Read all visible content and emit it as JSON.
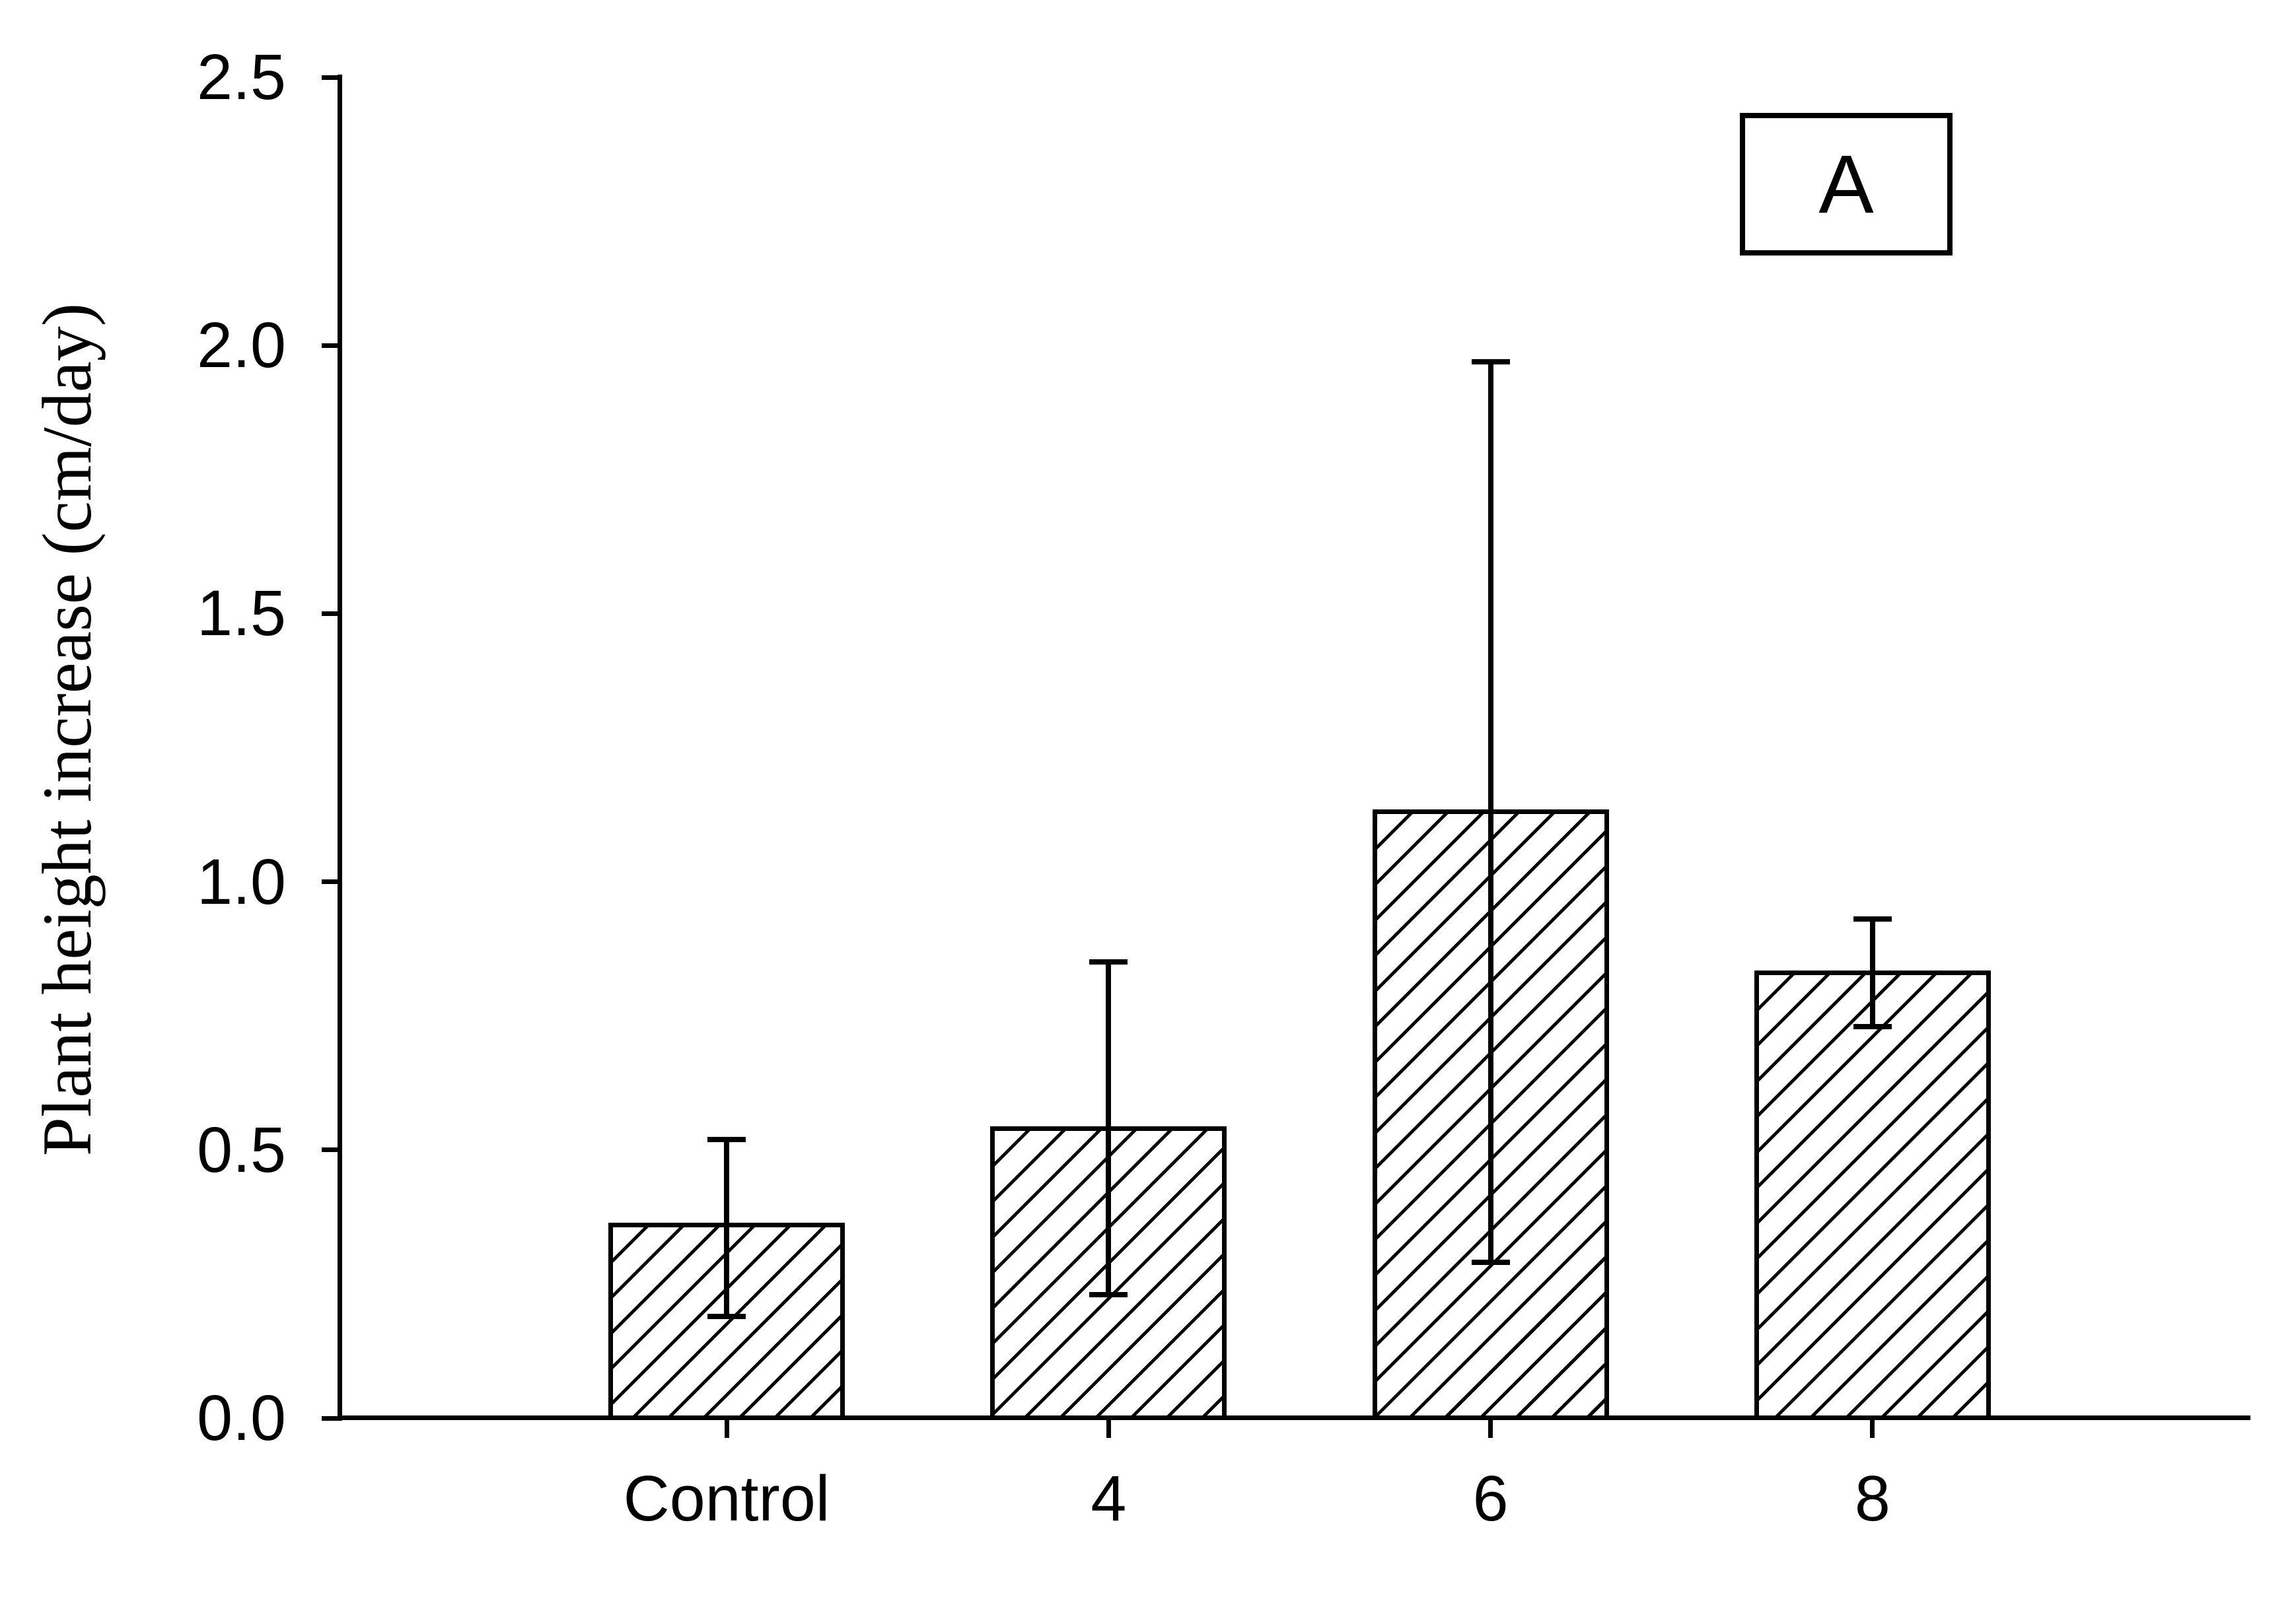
{
  "figure": {
    "panel_label": "A",
    "background_color": "#ffffff",
    "ink_color": "#000000"
  },
  "chart_data": {
    "type": "bar",
    "title": "",
    "xlabel": "",
    "ylabel": "Plant height increase (cm/day)",
    "categories": [
      "Control",
      "4",
      "6",
      "8"
    ],
    "values": [
      0.36,
      0.54,
      1.13,
      0.83
    ],
    "error_upper": [
      0.52,
      0.85,
      1.97,
      0.93
    ],
    "error_lower": [
      0.19,
      0.23,
      0.29,
      0.73
    ],
    "ylim": [
      0.0,
      2.5
    ],
    "y_ticks": [
      0.0,
      0.5,
      1.0,
      1.5,
      2.0,
      2.5
    ],
    "y_tick_labels": [
      "0.0",
      "0.5",
      "1.0",
      "1.5",
      "2.0",
      "2.5"
    ],
    "grid": false,
    "legend": "none",
    "bar_fill": "white with black diagonal hatch (/)",
    "bar_edge_color": "#000000",
    "error_bar_style": "caps above and below mean"
  }
}
